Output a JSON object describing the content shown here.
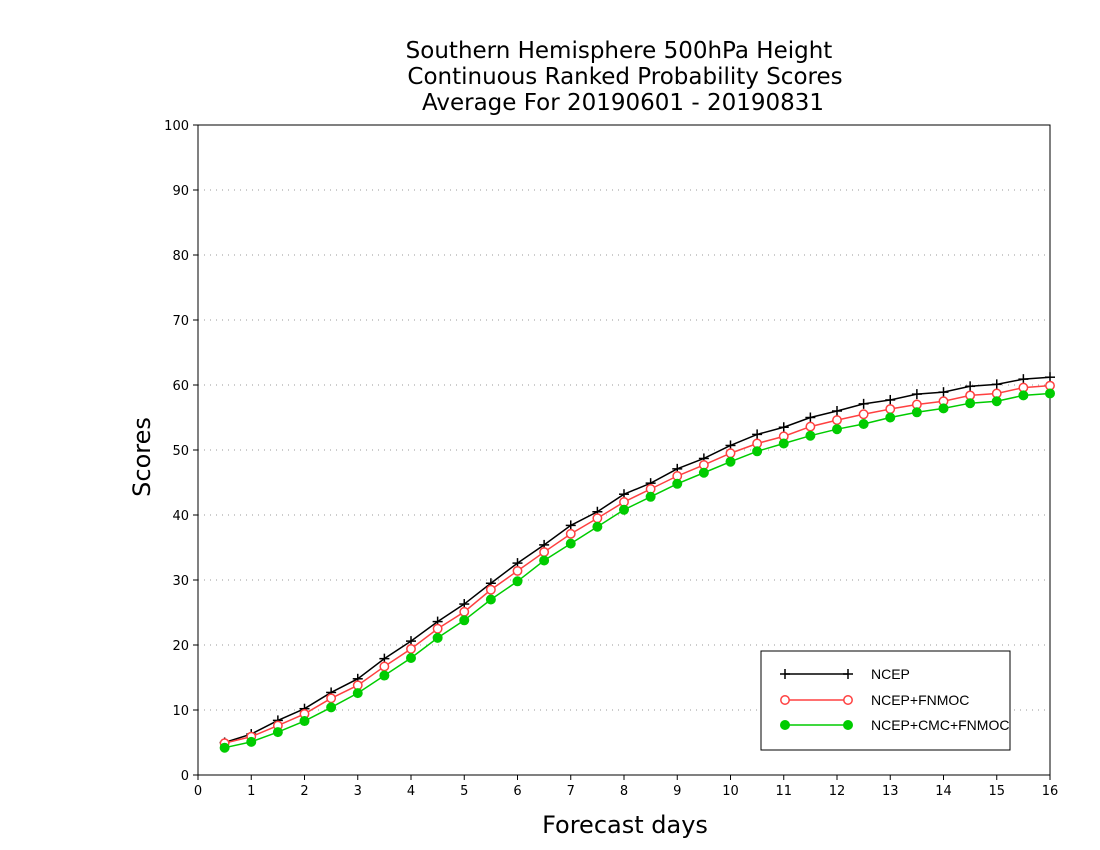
{
  "chart_data": {
    "type": "line",
    "title_lines": [
      "Southern Hemisphere 500hPa Height",
      "Continuous Ranked Probability Scores",
      "Average For 20190601 - 20190831"
    ],
    "xlabel": "Forecast days",
    "ylabel": "Scores",
    "xlim": [
      0,
      16
    ],
    "ylim": [
      0,
      100
    ],
    "xticks": [
      "0",
      "1",
      "2",
      "3",
      "4",
      "5",
      "6",
      "7",
      "8",
      "9",
      "10",
      "11",
      "12",
      "13",
      "14",
      "15",
      "16"
    ],
    "yticks": [
      "0",
      "10",
      "20",
      "30",
      "40",
      "50",
      "60",
      "70",
      "80",
      "90",
      "100"
    ],
    "grid": "horizontal-dotted",
    "legend_position": "bottom-right",
    "x": [
      0.5,
      1,
      1.5,
      2,
      2.5,
      3,
      3.5,
      4,
      4.5,
      5,
      5.5,
      6,
      6.5,
      7,
      7.5,
      8,
      8.5,
      9,
      9.5,
      10,
      10.5,
      11,
      11.5,
      12,
      12.5,
      13,
      13.5,
      14,
      14.5,
      15,
      15.5,
      16
    ],
    "series": [
      {
        "name": "NCEP",
        "color": "#000000",
        "marker": "plus",
        "values": [
          5.0,
          6.3,
          8.4,
          10.2,
          12.7,
          14.8,
          17.9,
          20.6,
          23.6,
          26.3,
          29.5,
          32.6,
          35.4,
          38.4,
          40.5,
          43.2,
          44.9,
          47.1,
          48.7,
          50.7,
          52.4,
          53.5,
          55.0,
          56.0,
          57.1,
          57.7,
          58.6,
          58.9,
          59.8,
          60.1,
          60.9,
          61.2
        ]
      },
      {
        "name": "NCEP+FNMOC",
        "color": "#ff4040",
        "marker": "open-circle",
        "values": [
          4.9,
          5.9,
          7.6,
          9.4,
          11.8,
          13.8,
          16.7,
          19.4,
          22.5,
          25.1,
          28.5,
          31.4,
          34.3,
          37.1,
          39.5,
          42.0,
          44.0,
          46.0,
          47.7,
          49.5,
          51.0,
          52.1,
          53.6,
          54.6,
          55.5,
          56.3,
          57.0,
          57.5,
          58.4,
          58.7,
          59.6,
          59.9
        ]
      },
      {
        "name": "NCEP+CMC+FNMOC",
        "color": "#00cc00",
        "marker": "filled-circle",
        "values": [
          4.2,
          5.1,
          6.6,
          8.3,
          10.4,
          12.6,
          15.3,
          18.0,
          21.1,
          23.8,
          27.0,
          29.8,
          33.0,
          35.6,
          38.2,
          40.8,
          42.8,
          44.8,
          46.5,
          48.2,
          49.8,
          51.0,
          52.2,
          53.2,
          54.0,
          55.0,
          55.8,
          56.4,
          57.2,
          57.5,
          58.4,
          58.7
        ]
      }
    ]
  }
}
